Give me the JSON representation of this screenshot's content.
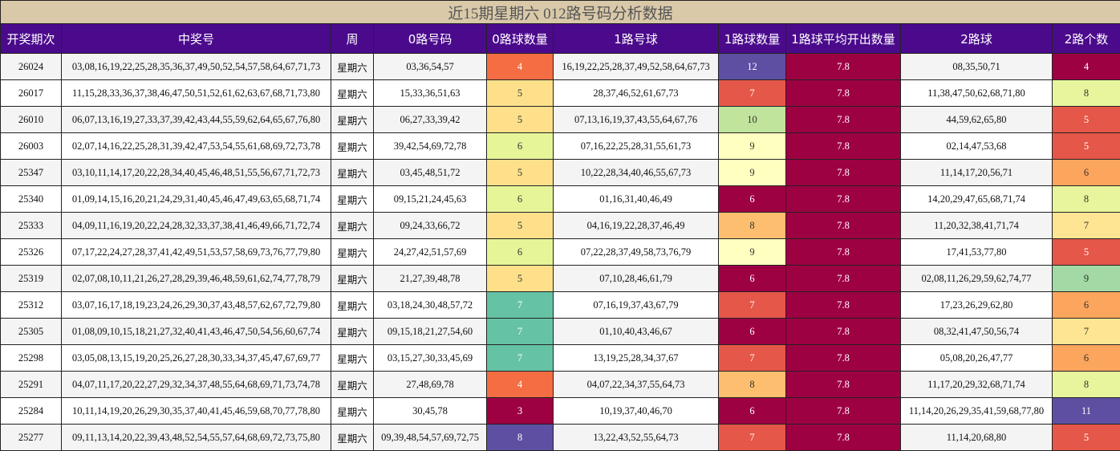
{
  "title": "近15期星期六 012路号码分析数据",
  "table": {
    "columns": [
      "开奖期次",
      "中奖号",
      "周",
      "0路号码",
      "0路球数量",
      "1路号球",
      "1路球数量",
      "1路球平均开出数量",
      "2路球",
      "2路个数"
    ],
    "rows": [
      [
        "26024",
        "03,08,16,19,22,25,28,35,36,37,49,50,52,54,57,58,64,67,71,73",
        "星期六",
        "03,36,54,57",
        {
          "value": 4,
          "color": "#f46d43"
        },
        "16,19,22,25,28,37,49,52,58,64,67,73",
        {
          "value": 12,
          "color": "#5e4fa2"
        },
        {
          "value": 7.8,
          "color": "#9e0142"
        },
        "08,35,50,71",
        {
          "value": 4,
          "color": "#9e0142"
        }
      ],
      [
        "26017",
        "11,15,28,33,36,37,38,46,47,50,51,52,61,62,63,67,68,71,73,80",
        "星期六",
        "15,33,36,51,63",
        {
          "value": 5,
          "color": "#fee08b"
        },
        "28,37,46,52,61,67,73",
        {
          "value": 7,
          "color": "#e55748"
        },
        {
          "value": 7.8,
          "color": "#9e0142"
        },
        "11,38,47,50,62,68,71,80",
        {
          "value": 8,
          "color": "#e9f59d"
        }
      ],
      [
        "26010",
        "06,07,13,16,19,27,33,37,39,42,43,44,55,59,62,64,65,67,76,80",
        "星期六",
        "06,27,33,39,42",
        {
          "value": 5,
          "color": "#fee08b"
        },
        "07,13,16,19,37,43,55,64,67,76",
        {
          "value": 10,
          "color": "#c0e49b"
        },
        {
          "value": 7.8,
          "color": "#9e0142"
        },
        "44,59,62,65,80",
        {
          "value": 5,
          "color": "#e55748"
        }
      ],
      [
        "26003",
        "02,07,14,16,22,25,28,31,39,42,47,53,54,55,61,68,69,72,73,78",
        "星期六",
        "39,42,54,69,72,78",
        {
          "value": 6,
          "color": "#e6f598"
        },
        "07,16,22,25,28,31,55,61,73",
        {
          "value": 9,
          "color": "#ffffbf"
        },
        {
          "value": 7.8,
          "color": "#9e0142"
        },
        "02,14,47,53,68",
        {
          "value": 5,
          "color": "#e55748"
        }
      ],
      [
        "25347",
        "03,10,11,14,17,20,22,28,34,40,45,46,48,51,55,56,67,71,72,73",
        "星期六",
        "03,45,48,51,72",
        {
          "value": 5,
          "color": "#fee08b"
        },
        "10,22,28,34,40,46,55,67,73",
        {
          "value": 9,
          "color": "#ffffbf"
        },
        {
          "value": 7.8,
          "color": "#9e0142"
        },
        "11,14,17,20,56,71",
        {
          "value": 6,
          "color": "#fca55d"
        }
      ],
      [
        "25340",
        "01,09,14,15,16,20,21,24,29,31,40,45,46,47,49,63,65,68,71,74",
        "星期六",
        "09,15,21,24,45,63",
        {
          "value": 6,
          "color": "#e6f598"
        },
        "01,16,31,40,46,49",
        {
          "value": 6,
          "color": "#9e0142"
        },
        {
          "value": 7.8,
          "color": "#9e0142"
        },
        "14,20,29,47,65,68,71,74",
        {
          "value": 8,
          "color": "#e9f59d"
        }
      ],
      [
        "25333",
        "04,09,11,16,19,20,22,24,28,32,33,37,38,41,46,49,66,71,72,74",
        "星期六",
        "09,24,33,66,72",
        {
          "value": 5,
          "color": "#fee08b"
        },
        "04,16,19,22,28,37,46,49",
        {
          "value": 8,
          "color": "#fdbf6f"
        },
        {
          "value": 7.8,
          "color": "#9e0142"
        },
        "11,20,32,38,41,71,74",
        {
          "value": 7,
          "color": "#fee593"
        }
      ],
      [
        "25326",
        "07,17,22,24,27,28,37,41,42,49,51,53,57,58,69,73,76,77,79,80",
        "星期六",
        "24,27,42,51,57,69",
        {
          "value": 6,
          "color": "#e6f598"
        },
        "07,22,28,37,49,58,73,76,79",
        {
          "value": 9,
          "color": "#ffffbf"
        },
        {
          "value": 7.8,
          "color": "#9e0142"
        },
        "17,41,53,77,80",
        {
          "value": 5,
          "color": "#e55748"
        }
      ],
      [
        "25319",
        "02,07,08,10,11,21,26,27,28,29,39,46,48,59,61,62,74,77,78,79",
        "星期六",
        "21,27,39,48,78",
        {
          "value": 5,
          "color": "#fee08b"
        },
        "07,10,28,46,61,79",
        {
          "value": 6,
          "color": "#9e0142"
        },
        {
          "value": 7.8,
          "color": "#9e0142"
        },
        "02,08,11,26,29,59,62,74,77",
        {
          "value": 9,
          "color": "#a2d9a4"
        }
      ],
      [
        "25312",
        "03,07,16,17,18,19,23,24,26,29,30,37,43,48,57,62,67,72,79,80",
        "星期六",
        "03,18,24,30,48,57,72",
        {
          "value": 7,
          "color": "#66c2a5"
        },
        "07,16,19,37,43,67,79",
        {
          "value": 7,
          "color": "#e55748"
        },
        {
          "value": 7.8,
          "color": "#9e0142"
        },
        "17,23,26,29,62,80",
        {
          "value": 6,
          "color": "#fca55d"
        }
      ],
      [
        "25305",
        "01,08,09,10,15,18,21,27,32,40,41,43,46,47,50,54,56,60,67,74",
        "星期六",
        "09,15,18,21,27,54,60",
        {
          "value": 7,
          "color": "#66c2a5"
        },
        "01,10,40,43,46,67",
        {
          "value": 6,
          "color": "#9e0142"
        },
        {
          "value": 7.8,
          "color": "#9e0142"
        },
        "08,32,41,47,50,56,74",
        {
          "value": 7,
          "color": "#fee593"
        }
      ],
      [
        "25298",
        "03,05,08,13,15,19,20,25,26,27,28,30,33,34,37,45,47,67,69,77",
        "星期六",
        "03,15,27,30,33,45,69",
        {
          "value": 7,
          "color": "#66c2a5"
        },
        "13,19,25,28,34,37,67",
        {
          "value": 7,
          "color": "#e55748"
        },
        {
          "value": 7.8,
          "color": "#9e0142"
        },
        "05,08,20,26,47,77",
        {
          "value": 6,
          "color": "#fca55d"
        }
      ],
      [
        "25291",
        "04,07,11,17,20,22,27,29,32,34,37,48,55,64,68,69,71,73,74,78",
        "星期六",
        "27,48,69,78",
        {
          "value": 4,
          "color": "#f46d43"
        },
        "04,07,22,34,37,55,64,73",
        {
          "value": 8,
          "color": "#fdbf6f"
        },
        {
          "value": 7.8,
          "color": "#9e0142"
        },
        "11,17,20,29,32,68,71,74",
        {
          "value": 8,
          "color": "#e9f59d"
        }
      ],
      [
        "25284",
        "10,11,14,19,20,26,29,30,35,37,40,41,45,46,59,68,70,77,78,80",
        "星期六",
        "30,45,78",
        {
          "value": 3,
          "color": "#9e0142"
        },
        "10,19,37,40,46,70",
        {
          "value": 6,
          "color": "#9e0142"
        },
        {
          "value": 7.8,
          "color": "#9e0142"
        },
        "11,14,20,26,29,35,41,59,68,77,80",
        {
          "value": 11,
          "color": "#5e4fa2"
        }
      ],
      [
        "25277",
        "09,11,13,14,20,22,39,43,48,52,54,55,57,64,68,69,72,73,75,80",
        "星期六",
        "09,39,48,54,57,69,72,75",
        {
          "value": 8,
          "color": "#5e4fa2"
        },
        "13,22,43,52,55,64,73",
        {
          "value": 7,
          "color": "#e55748"
        },
        {
          "value": 7.8,
          "color": "#9e0142"
        },
        "11,14,20,68,80",
        {
          "value": 5,
          "color": "#e55748"
        }
      ]
    ]
  }
}
